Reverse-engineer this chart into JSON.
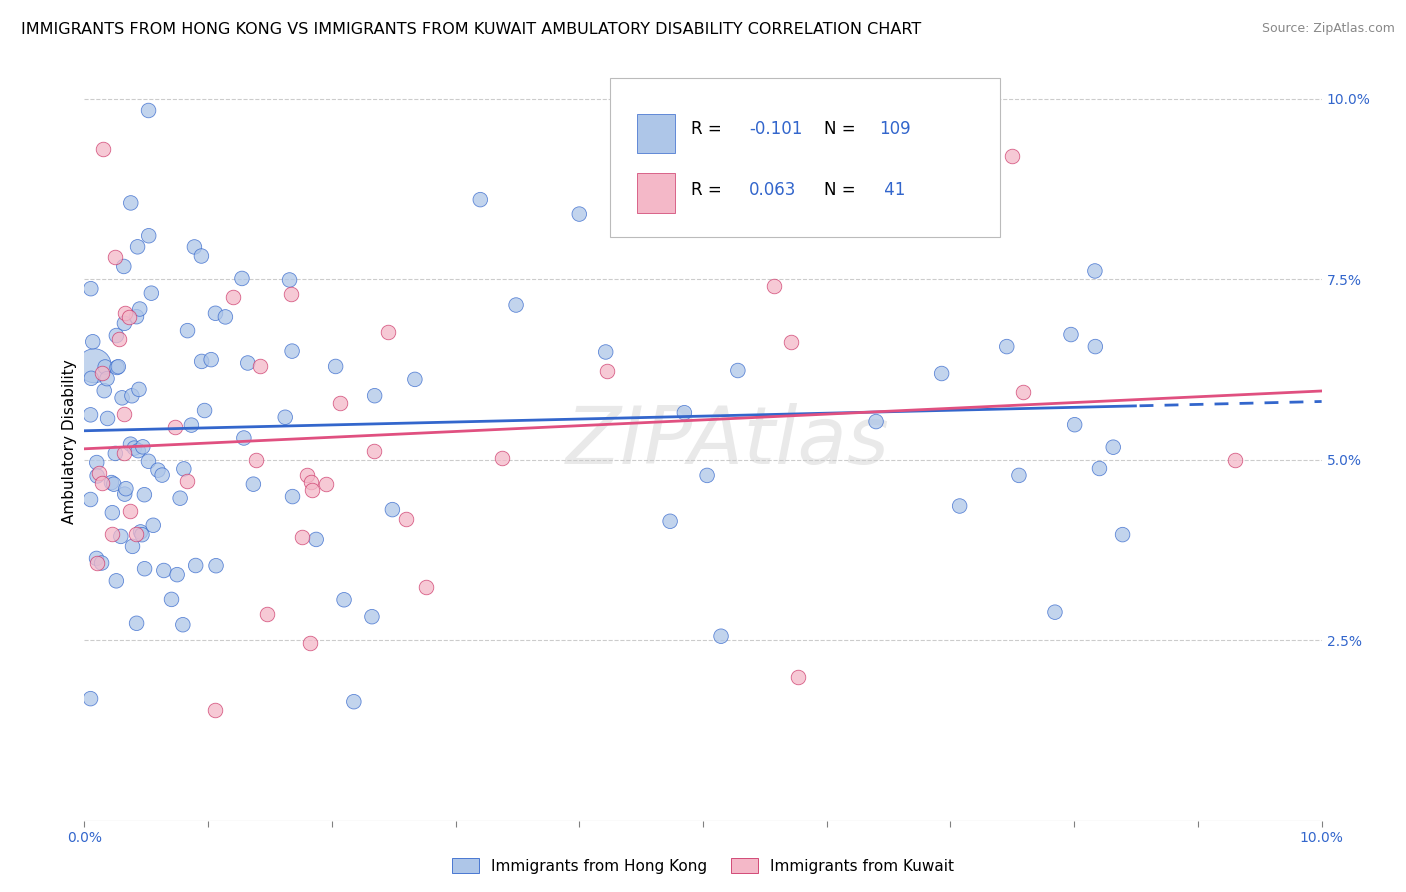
{
  "title": "IMMIGRANTS FROM HONG KONG VS IMMIGRANTS FROM KUWAIT AMBULATORY DISABILITY CORRELATION CHART",
  "source": "Source: ZipAtlas.com",
  "ylabel": "Ambulatory Disability",
  "xlim": [
    0.0,
    0.1
  ],
  "ylim": [
    0.0,
    0.105
  ],
  "hk_color": "#aec6e8",
  "hk_edge_color": "#3366cc",
  "kuwait_color": "#f4b8c8",
  "kuwait_edge_color": "#cc3366",
  "hk_line_color": "#3366cc",
  "kuwait_line_color": "#e05080",
  "hk_R": -0.101,
  "hk_N": 109,
  "kuwait_R": 0.063,
  "kuwait_N": 41,
  "watermark": "ZIPAtlas",
  "legend_label_hk": "Immigrants from Hong Kong",
  "legend_label_kuwait": "Immigrants from Kuwait",
  "scatter_size": 110,
  "background_color": "#ffffff",
  "grid_color": "#cccccc",
  "title_fontsize": 11.5,
  "tick_fontsize": 10,
  "legend_fontsize": 12
}
